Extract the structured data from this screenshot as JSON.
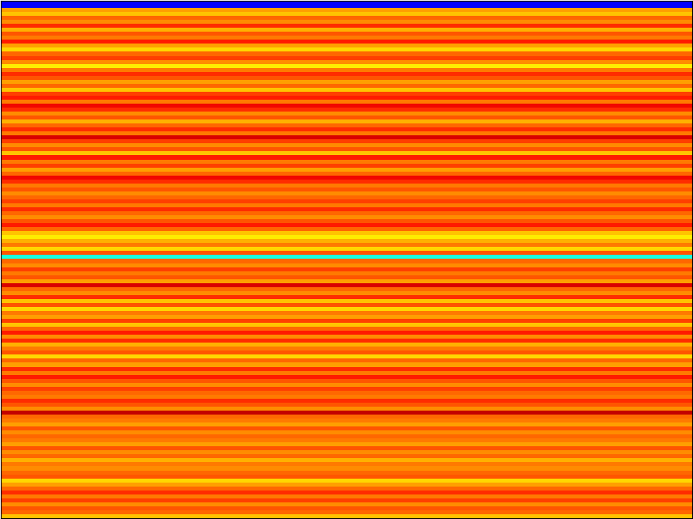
{
  "chart_data": {
    "type": "heatmap",
    "tick_labels": false,
    "grid": false,
    "clim": [
      0,
      1
    ],
    "cells": [
      [
        0.12
      ],
      [
        0.12
      ],
      [
        0.74
      ],
      [
        0.7
      ],
      [
        0.8
      ],
      [
        0.76
      ],
      [
        0.86
      ],
      [
        0.72
      ],
      [
        0.82
      ],
      [
        0.78
      ],
      [
        0.88
      ],
      [
        0.74
      ],
      [
        0.68
      ],
      [
        0.8
      ],
      [
        0.84
      ],
      [
        0.76
      ],
      [
        0.66
      ],
      [
        0.78
      ],
      [
        0.86
      ],
      [
        0.82
      ],
      [
        0.74
      ],
      [
        0.8
      ],
      [
        0.7
      ],
      [
        0.84
      ],
      [
        0.88
      ],
      [
        0.78
      ],
      [
        0.9
      ],
      [
        0.86
      ],
      [
        0.76
      ],
      [
        0.82
      ],
      [
        0.72
      ],
      [
        0.8
      ],
      [
        0.86
      ],
      [
        0.78
      ],
      [
        0.92
      ],
      [
        0.84
      ],
      [
        0.76
      ],
      [
        0.82
      ],
      [
        0.7
      ],
      [
        0.88
      ],
      [
        0.78
      ],
      [
        0.84
      ],
      [
        0.74
      ],
      [
        0.8
      ],
      [
        0.9
      ],
      [
        0.86
      ],
      [
        0.78
      ],
      [
        0.82
      ],
      [
        0.76
      ],
      [
        0.8
      ],
      [
        0.84
      ],
      [
        0.78
      ],
      [
        0.86
      ],
      [
        0.8
      ],
      [
        0.76
      ],
      [
        0.82
      ],
      [
        0.88
      ],
      [
        0.8
      ],
      [
        0.7
      ],
      [
        0.66
      ],
      [
        0.72
      ],
      [
        0.78
      ],
      [
        0.68
      ],
      [
        0.82
      ],
      [
        0.38
      ],
      [
        0.8
      ],
      [
        0.76
      ],
      [
        0.84
      ],
      [
        0.78
      ],
      [
        0.82
      ],
      [
        0.74
      ],
      [
        0.92
      ],
      [
        0.8
      ],
      [
        0.76
      ],
      [
        0.86
      ],
      [
        0.7
      ],
      [
        0.82
      ],
      [
        0.68
      ],
      [
        0.78
      ],
      [
        0.74
      ],
      [
        0.84
      ],
      [
        0.7
      ],
      [
        0.8
      ],
      [
        0.88
      ],
      [
        0.76
      ],
      [
        0.86
      ],
      [
        0.72
      ],
      [
        0.78
      ],
      [
        0.82
      ],
      [
        0.68
      ],
      [
        0.8
      ],
      [
        0.74
      ],
      [
        0.86
      ],
      [
        0.78
      ],
      [
        0.88
      ],
      [
        0.82
      ],
      [
        0.76
      ],
      [
        0.84
      ],
      [
        0.8
      ],
      [
        0.78
      ],
      [
        0.86
      ],
      [
        0.82
      ],
      [
        0.76
      ],
      [
        0.94
      ],
      [
        0.8
      ],
      [
        0.78
      ],
      [
        0.74
      ],
      [
        0.82
      ],
      [
        0.76
      ],
      [
        0.8
      ],
      [
        0.78
      ],
      [
        0.74
      ],
      [
        0.82
      ],
      [
        0.76
      ],
      [
        0.8
      ],
      [
        0.72
      ],
      [
        0.78
      ],
      [
        0.76
      ],
      [
        0.8
      ],
      [
        0.82
      ],
      [
        0.68
      ],
      [
        0.74
      ],
      [
        0.8
      ],
      [
        0.86
      ],
      [
        0.78
      ],
      [
        0.84
      ],
      [
        0.76
      ],
      [
        0.82
      ],
      [
        0.8
      ],
      [
        0.7
      ]
    ]
  }
}
